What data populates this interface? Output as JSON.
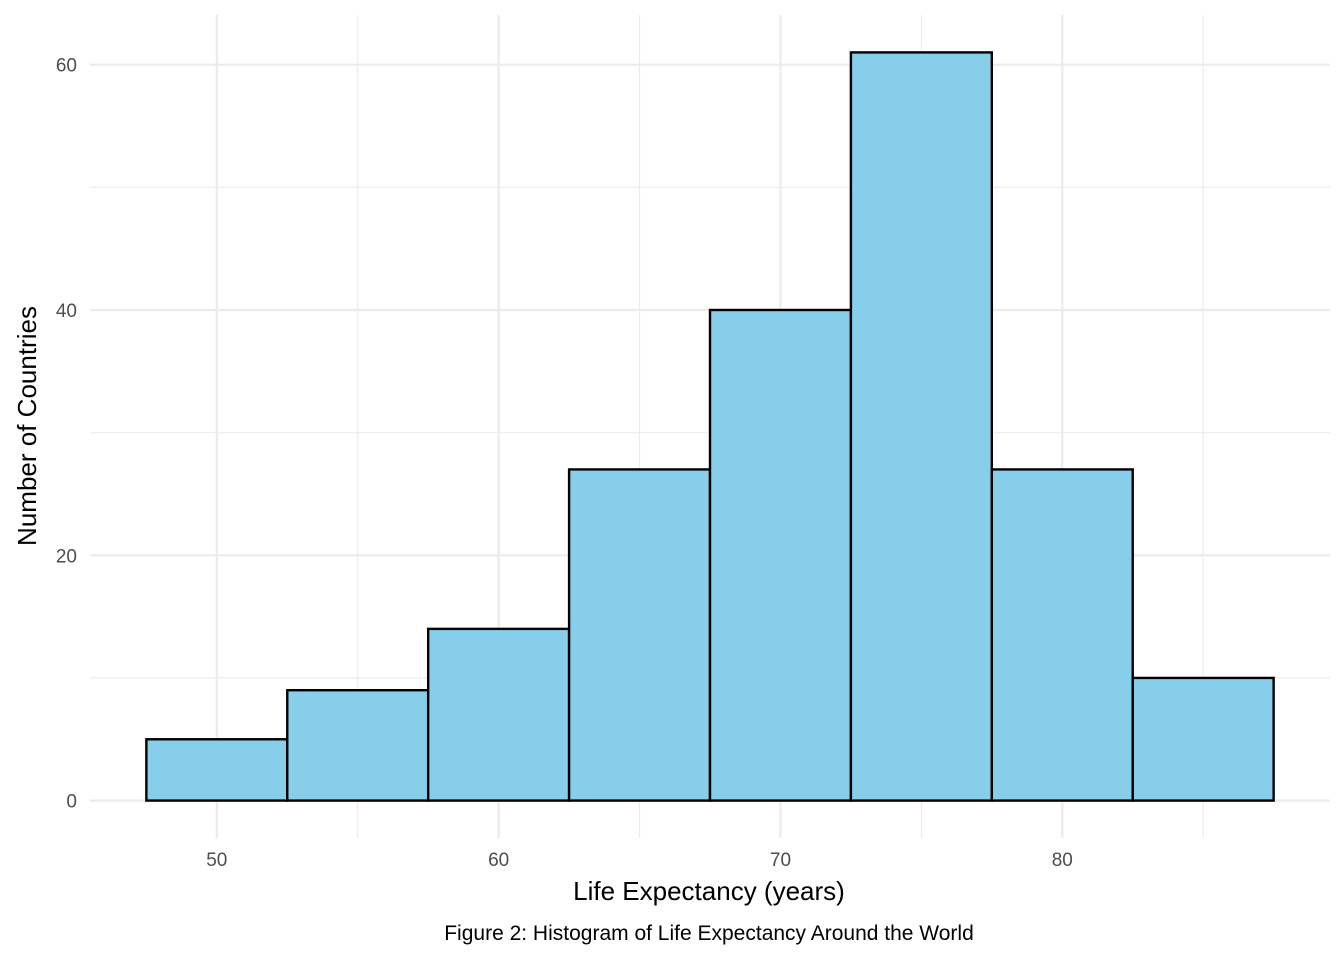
{
  "chart_data": {
    "type": "bar",
    "bins": [
      {
        "from": 47.5,
        "to": 52.5,
        "value": 5
      },
      {
        "from": 52.5,
        "to": 57.5,
        "value": 9
      },
      {
        "from": 57.5,
        "to": 62.5,
        "value": 14
      },
      {
        "from": 62.5,
        "to": 67.5,
        "value": 27
      },
      {
        "from": 67.5,
        "to": 72.5,
        "value": 40
      },
      {
        "from": 72.5,
        "to": 77.5,
        "value": 61
      },
      {
        "from": 77.5,
        "to": 82.5,
        "value": 27
      },
      {
        "from": 82.5,
        "to": 87.5,
        "value": 10
      }
    ],
    "xlabel": "Life Expectancy (years)",
    "ylabel": "Number of Countries",
    "caption": "Figure 2: Histogram of Life Expectancy Around the World",
    "x_ticks": [
      50,
      60,
      70,
      80
    ],
    "y_ticks": [
      0,
      20,
      40,
      60
    ],
    "xlim": [
      45.5,
      89.5
    ],
    "ylim": [
      -3.05,
      64.05
    ],
    "grid": true,
    "bar_fill": "#87CEEB",
    "bar_stroke": "#000000",
    "grid_color": "#ebebeb"
  }
}
